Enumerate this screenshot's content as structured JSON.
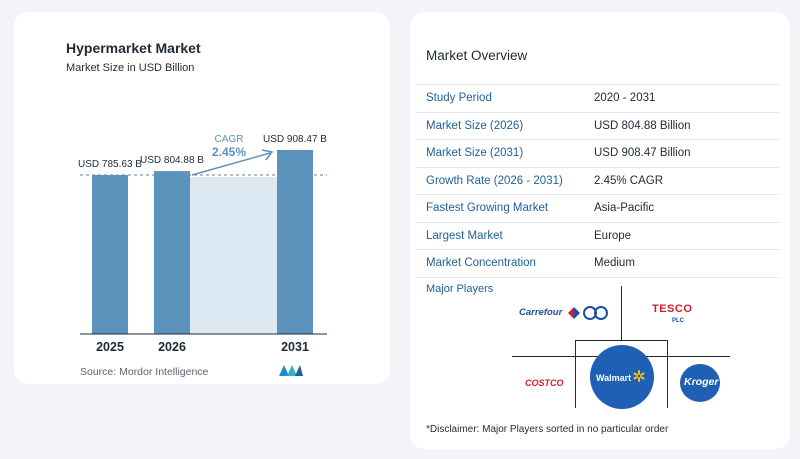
{
  "chart_data": {
    "type": "bar",
    "title": "Hypermarket Market",
    "subtitle": "Market Size in USD Billion",
    "categories": [
      "2025",
      "2026",
      "2031"
    ],
    "values": [
      785.63,
      804.88,
      908.47
    ],
    "value_labels": [
      "USD 785.63 B",
      "USD 804.88 B",
      "USD 908.47 B"
    ],
    "cagr_label": "CAGR",
    "cagr_value": "2.45%",
    "source": "Source:  Mordor Intelligence",
    "colors": {
      "bar": "#5b93bd",
      "band": "#dde9f2",
      "axis": "#1f2a37",
      "accent": "#5b93bd"
    }
  },
  "overview": {
    "title": "Market Overview",
    "rows": [
      {
        "label": "Study Period",
        "value": "2020 - 2031"
      },
      {
        "label": "Market Size (2026)",
        "value": "USD 804.88 Billion"
      },
      {
        "label": "Market Size (2031)",
        "value": "USD 908.47 Billion"
      },
      {
        "label": "Growth Rate (2026 - 2031)",
        "value": "2.45% CAGR"
      },
      {
        "label": "Fastest Growing Market",
        "value": "Asia-Pacific"
      },
      {
        "label": "Largest Market",
        "value": "Europe"
      },
      {
        "label": "Market Concentration",
        "value": "Medium"
      }
    ],
    "players_title": "Major Players",
    "players": {
      "carrefour": "Carrefour",
      "tesco": "TESCO",
      "tesco_plc": "PLC",
      "costco": "COSTCO",
      "walmart": "Walmart",
      "kroger": "Kroger"
    },
    "disclaimer": "*Disclaimer: Major Players sorted in no particular order"
  }
}
